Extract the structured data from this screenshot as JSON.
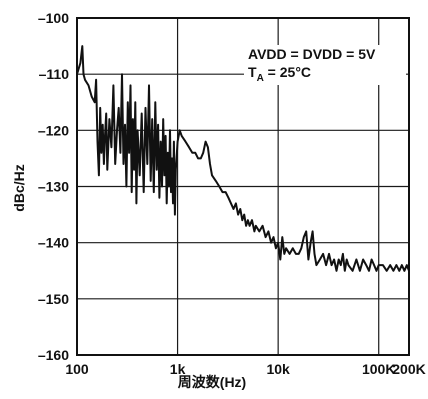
{
  "chart_data": {
    "type": "line",
    "title": "",
    "xlabel": "周波数(Hz)",
    "ylabel": "dBc/Hz",
    "xscale": "log",
    "xlim": [
      100,
      200000
    ],
    "ylim": [
      -160,
      -100
    ],
    "x_ticks": [
      {
        "value": 100,
        "label": "100"
      },
      {
        "value": 1000,
        "label": "1k"
      },
      {
        "value": 10000,
        "label": "10k"
      },
      {
        "value": 100000,
        "label": "100K"
      },
      {
        "value": 200000,
        "label": "200K"
      }
    ],
    "y_ticks": [
      {
        "value": -100,
        "label": "–100"
      },
      {
        "value": -110,
        "label": "–110"
      },
      {
        "value": -120,
        "label": "–120"
      },
      {
        "value": -130,
        "label": "–130"
      },
      {
        "value": -140,
        "label": "–140"
      },
      {
        "value": -150,
        "label": "–150"
      },
      {
        "value": -160,
        "label": "–160"
      }
    ],
    "grid": true,
    "annotation": {
      "line1": "AVDD = DVDD = 5V",
      "line2_main": "T",
      "line2_sub": "A",
      "line2_rest": " = 25°C"
    },
    "series": [
      {
        "color": "#111111",
        "points": [
          [
            100,
            -110
          ],
          [
            108,
            -108
          ],
          [
            113,
            -105
          ],
          [
            116,
            -110
          ],
          [
            120,
            -111
          ],
          [
            130,
            -112
          ],
          [
            140,
            -114
          ],
          [
            150,
            -115
          ],
          [
            155,
            -111
          ],
          [
            160,
            -122
          ],
          [
            165,
            -128
          ],
          [
            170,
            -116
          ],
          [
            175,
            -124
          ],
          [
            180,
            -119
          ],
          [
            185,
            -126
          ],
          [
            190,
            -121
          ],
          [
            195,
            -117
          ],
          [
            200,
            -127
          ],
          [
            210,
            -118
          ],
          [
            220,
            -123
          ],
          [
            230,
            -112
          ],
          [
            240,
            -126
          ],
          [
            250,
            -120
          ],
          [
            260,
            -116
          ],
          [
            270,
            -124
          ],
          [
            280,
            -110
          ],
          [
            290,
            -126
          ],
          [
            300,
            -119
          ],
          [
            310,
            -130
          ],
          [
            320,
            -115
          ],
          [
            330,
            -124
          ],
          [
            340,
            -112
          ],
          [
            350,
            -131
          ],
          [
            360,
            -118
          ],
          [
            370,
            -127
          ],
          [
            380,
            -115
          ],
          [
            390,
            -133
          ],
          [
            400,
            -120
          ],
          [
            420,
            -128
          ],
          [
            440,
            -117
          ],
          [
            460,
            -131
          ],
          [
            480,
            -116
          ],
          [
            500,
            -126
          ],
          [
            520,
            -112
          ],
          [
            540,
            -129
          ],
          [
            560,
            -118
          ],
          [
            580,
            -131
          ],
          [
            600,
            -115
          ],
          [
            620,
            -127
          ],
          [
            640,
            -119
          ],
          [
            660,
            -132
          ],
          [
            680,
            -122
          ],
          [
            700,
            -130
          ],
          [
            720,
            -118
          ],
          [
            740,
            -128
          ],
          [
            760,
            -121
          ],
          [
            780,
            -133
          ],
          [
            800,
            -124
          ],
          [
            820,
            -130
          ],
          [
            840,
            -120
          ],
          [
            860,
            -131
          ],
          [
            880,
            -125
          ],
          [
            900,
            -133
          ],
          [
            920,
            -122
          ],
          [
            940,
            -135
          ],
          [
            960,
            -127
          ],
          [
            1000,
            -122
          ],
          [
            1050,
            -120
          ],
          [
            1100,
            -121
          ],
          [
            1200,
            -122
          ],
          [
            1300,
            -123
          ],
          [
            1400,
            -124
          ],
          [
            1500,
            -124
          ],
          [
            1600,
            -125
          ],
          [
            1700,
            -125
          ],
          [
            1800,
            -124
          ],
          [
            1900,
            -122
          ],
          [
            2000,
            -123
          ],
          [
            2100,
            -126
          ],
          [
            2200,
            -128
          ],
          [
            2400,
            -129
          ],
          [
            2600,
            -130
          ],
          [
            2800,
            -131
          ],
          [
            3000,
            -131
          ],
          [
            3200,
            -132
          ],
          [
            3400,
            -133
          ],
          [
            3600,
            -134
          ],
          [
            3800,
            -133
          ],
          [
            4000,
            -135
          ],
          [
            4200,
            -134
          ],
          [
            4400,
            -136
          ],
          [
            4600,
            -135
          ],
          [
            4800,
            -137
          ],
          [
            5000,
            -136
          ],
          [
            5200,
            -137
          ],
          [
            5500,
            -136
          ],
          [
            5800,
            -138
          ],
          [
            6000,
            -137
          ],
          [
            6500,
            -138
          ],
          [
            7000,
            -137
          ],
          [
            7500,
            -139
          ],
          [
            8000,
            -138
          ],
          [
            8500,
            -140
          ],
          [
            9000,
            -139
          ],
          [
            9500,
            -141
          ],
          [
            10000,
            -140
          ],
          [
            10500,
            -143
          ],
          [
            11000,
            -139
          ],
          [
            11500,
            -142
          ],
          [
            12000,
            -141
          ],
          [
            13000,
            -142
          ],
          [
            14000,
            -141
          ],
          [
            15000,
            -142
          ],
          [
            16000,
            -142
          ],
          [
            17000,
            -141
          ],
          [
            18000,
            -139
          ],
          [
            19000,
            -138
          ],
          [
            20000,
            -143
          ],
          [
            21000,
            -140
          ],
          [
            22000,
            -138
          ],
          [
            23000,
            -142
          ],
          [
            24000,
            -144
          ],
          [
            26000,
            -143
          ],
          [
            28000,
            -142
          ],
          [
            30000,
            -144
          ],
          [
            32000,
            -142
          ],
          [
            34000,
            -144
          ],
          [
            36000,
            -143
          ],
          [
            38000,
            -145
          ],
          [
            40000,
            -143
          ],
          [
            42000,
            -144
          ],
          [
            44000,
            -142
          ],
          [
            46000,
            -145
          ],
          [
            48000,
            -143
          ],
          [
            50000,
            -144
          ],
          [
            55000,
            -145
          ],
          [
            60000,
            -143
          ],
          [
            65000,
            -145
          ],
          [
            70000,
            -143
          ],
          [
            75000,
            -144
          ],
          [
            80000,
            -145
          ],
          [
            85000,
            -143
          ],
          [
            90000,
            -144
          ],
          [
            95000,
            -145
          ],
          [
            100000,
            -144
          ],
          [
            110000,
            -144
          ],
          [
            120000,
            -145
          ],
          [
            130000,
            -144
          ],
          [
            140000,
            -145
          ],
          [
            150000,
            -144
          ],
          [
            160000,
            -145
          ],
          [
            170000,
            -144
          ],
          [
            180000,
            -145
          ],
          [
            190000,
            -144
          ],
          [
            200000,
            -145
          ]
        ]
      }
    ]
  }
}
